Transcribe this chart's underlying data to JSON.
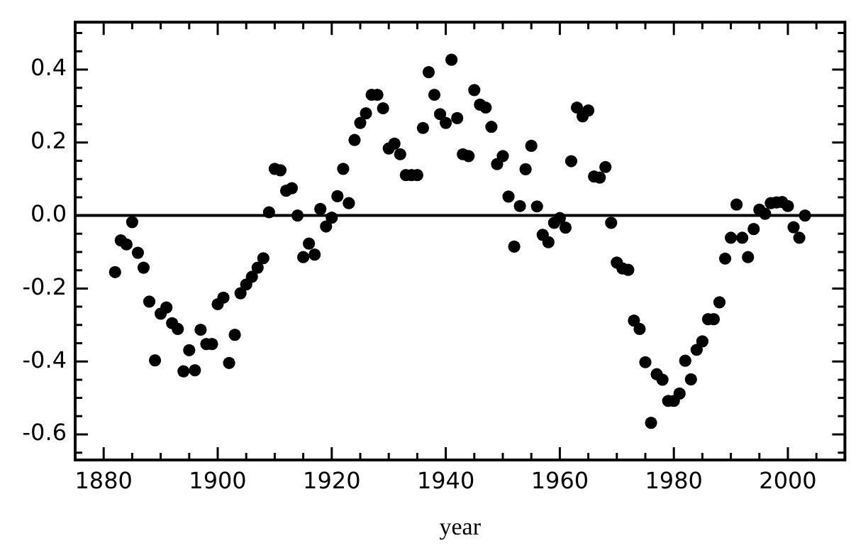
{
  "chart_data": {
    "type": "scatter",
    "xlabel": "year",
    "marker": "circle",
    "color": "#000000",
    "x": [
      1882,
      1883,
      1884,
      1885,
      1886,
      1887,
      1888,
      1889,
      1890,
      1891,
      1892,
      1893,
      1894,
      1895,
      1896,
      1897,
      1898,
      1899,
      1900,
      1901,
      1902,
      1903,
      1904,
      1905,
      1906,
      1907,
      1908,
      1909,
      1910,
      1911,
      1912,
      1913,
      1914,
      1915,
      1916,
      1917,
      1918,
      1919,
      1920,
      1921,
      1922,
      1923,
      1924,
      1925,
      1926,
      1927,
      1928,
      1929,
      1930,
      1931,
      1932,
      1933,
      1934,
      1935,
      1936,
      1937,
      1938,
      1939,
      1940,
      1941,
      1942,
      1943,
      1944,
      1945,
      1946,
      1947,
      1948,
      1949,
      1950,
      1951,
      1952,
      1953,
      1954,
      1955,
      1956,
      1957,
      1958,
      1959,
      1960,
      1961,
      1962,
      1963,
      1964,
      1965,
      1966,
      1967,
      1968,
      1969,
      1970,
      1971,
      1972,
      1973,
      1974,
      1975,
      1976,
      1977,
      1978,
      1979,
      1980,
      1981,
      1982,
      1983,
      1984,
      1985,
      1986,
      1987,
      1988,
      1989,
      1990,
      1991,
      1992,
      1993,
      1994,
      1995,
      1996,
      1997,
      1998,
      1999,
      2000,
      2001,
      2002,
      2003
    ],
    "values": [
      -0.155,
      -0.068,
      -0.079,
      -0.018,
      -0.102,
      -0.143,
      -0.236,
      -0.397,
      -0.269,
      -0.252,
      -0.295,
      -0.311,
      -0.427,
      -0.369,
      -0.424,
      -0.313,
      -0.352,
      -0.352,
      -0.243,
      -0.225,
      -0.404,
      -0.327,
      -0.213,
      -0.189,
      -0.168,
      -0.143,
      -0.117,
      0.009,
      0.128,
      0.124,
      0.068,
      0.075,
      0.0,
      -0.114,
      -0.077,
      -0.107,
      0.018,
      -0.03,
      -0.006,
      0.053,
      0.128,
      0.034,
      0.207,
      0.254,
      0.28,
      0.331,
      0.331,
      0.294,
      0.184,
      0.197,
      0.168,
      0.111,
      0.111,
      0.111,
      0.24,
      0.393,
      0.331,
      0.278,
      0.254,
      0.427,
      0.267,
      0.168,
      0.163,
      0.344,
      0.304,
      0.296,
      0.243,
      0.141,
      0.163,
      0.052,
      -0.085,
      0.026,
      0.127,
      0.191,
      0.025,
      -0.053,
      -0.073,
      -0.02,
      -0.007,
      -0.033,
      0.149,
      0.296,
      0.272,
      0.288,
      0.107,
      0.104,
      0.133,
      -0.02,
      -0.129,
      -0.145,
      -0.149,
      -0.288,
      -0.311,
      -0.402,
      -0.568,
      -0.435,
      -0.45,
      -0.508,
      -0.508,
      -0.488,
      -0.398,
      -0.449,
      -0.368,
      -0.345,
      -0.284,
      -0.284,
      -0.238,
      -0.118,
      -0.061,
      0.03,
      -0.061,
      -0.114,
      -0.037,
      0.016,
      0.005,
      0.034,
      0.036,
      0.037,
      0.026,
      -0.032,
      -0.061,
      0.0
    ],
    "xlim": [
      1875,
      2010
    ],
    "xticks": [
      {
        "value": 1875,
        "label": null
      },
      1880,
      {
        "value": 1885,
        "label": null
      },
      {
        "value": 1890,
        "label": null
      },
      {
        "value": 1895,
        "label": null
      },
      1900,
      {
        "value": 1905,
        "label": null
      },
      {
        "value": 1910,
        "label": null
      },
      {
        "value": 1915,
        "label": null
      },
      1920,
      {
        "value": 1925,
        "label": null
      },
      {
        "value": 1930,
        "label": null
      },
      {
        "value": 1935,
        "label": null
      },
      1940,
      {
        "value": 1945,
        "label": null
      },
      {
        "value": 1950,
        "label": null
      },
      {
        "value": 1955,
        "label": null
      },
      1960,
      {
        "value": 1965,
        "label": null
      },
      {
        "value": 1970,
        "label": null
      },
      {
        "value": 1975,
        "label": null
      },
      1980,
      {
        "value": 1985,
        "label": null
      },
      {
        "value": 1990,
        "label": null
      },
      {
        "value": 1995,
        "label": null
      },
      2000,
      {
        "value": 2005,
        "label": null
      }
    ],
    "ylim": [
      -0.67,
      0.53
    ],
    "yticks": [
      {
        "value": -0.65,
        "label": null
      },
      -0.6,
      {
        "value": -0.55,
        "label": null
      },
      {
        "value": -0.5,
        "label": null
      },
      {
        "value": -0.45,
        "label": null
      },
      -0.4,
      {
        "value": -0.35,
        "label": null
      },
      {
        "value": -0.3,
        "label": null
      },
      {
        "value": -0.25,
        "label": null
      },
      -0.2,
      {
        "value": -0.15,
        "label": null
      },
      {
        "value": -0.1,
        "label": null
      },
      {
        "value": -0.05,
        "label": null
      },
      {
        "value": 0,
        "label": "0.0"
      },
      {
        "value": 0.05,
        "label": null
      },
      {
        "value": 0.1,
        "label": null
      },
      {
        "value": 0.15,
        "label": null
      },
      0.2,
      {
        "value": 0.25,
        "label": null
      },
      {
        "value": 0.3,
        "label": null
      },
      {
        "value": 0.35,
        "label": null
      },
      0.4,
      {
        "value": 0.45,
        "label": null
      },
      {
        "value": 0.5,
        "label": null
      }
    ],
    "ref_lines": [
      {
        "axis": "y",
        "value": 0,
        "color": "#000000",
        "line_style": "solid"
      }
    ]
  }
}
